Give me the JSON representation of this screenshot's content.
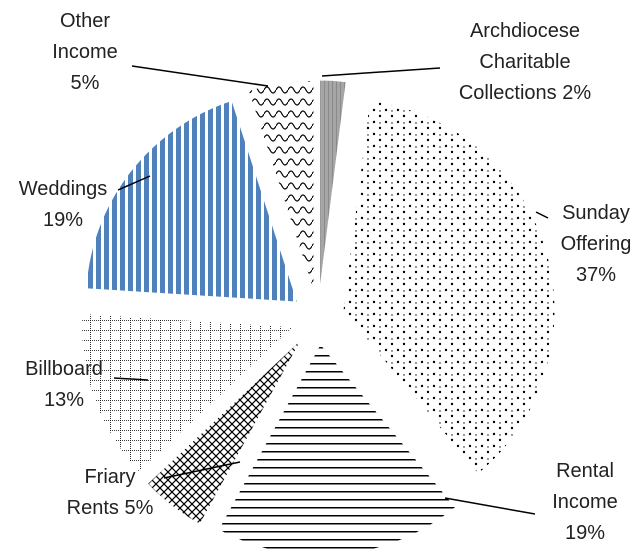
{
  "chart_data": {
    "type": "pie",
    "categories": [
      "Archdiocese Charitable Collections",
      "Sunday Offering",
      "Rental Income",
      "Friary Rents",
      "Billboard",
      "Weddings",
      "Other Income"
    ],
    "values": [
      2,
      37,
      19,
      5,
      13,
      19,
      5
    ],
    "value_labels": [
      "2%",
      "37%",
      "19%",
      "5%",
      "13%",
      "19%",
      "5%"
    ],
    "colors": [
      "#a6a6a6",
      "#ffffff",
      "#ffffff",
      "#ffffff",
      "#ffffff",
      "#4f81bd",
      "#ffffff"
    ]
  }
}
